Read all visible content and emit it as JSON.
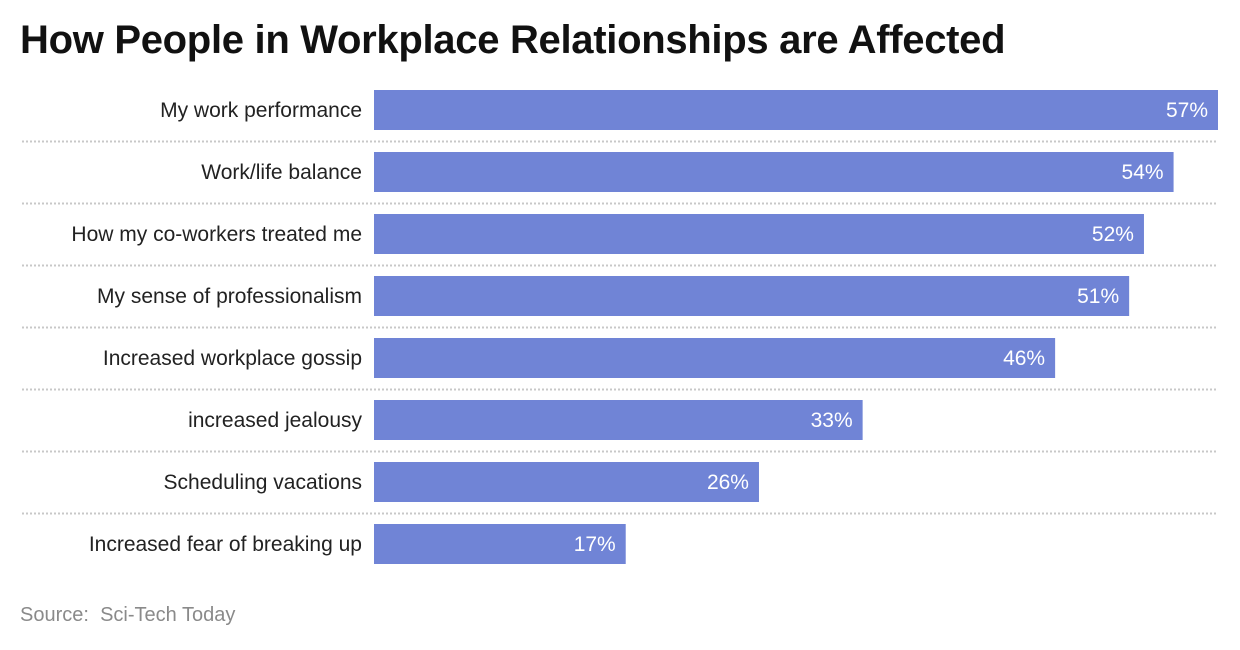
{
  "chart_data": {
    "type": "bar",
    "orientation": "horizontal",
    "title": "How People in Workplace Relationships are Affected",
    "categories": [
      "My work performance",
      "Work/life balance",
      "How my co-workers treated me",
      "My sense of professionalism",
      "Increased workplace gossip",
      "increased jealousy",
      "Scheduling vacations",
      "Increased fear of breaking up"
    ],
    "values": [
      57,
      54,
      52,
      51,
      46,
      33,
      26,
      17
    ],
    "value_labels": [
      "57%",
      "54%",
      "52%",
      "51%",
      "46%",
      "33%",
      "26%",
      "17%"
    ],
    "unit": "%",
    "xlim": [
      0,
      57
    ],
    "xlabel": "",
    "ylabel": "",
    "grid": false,
    "bar_color": "#7084D6",
    "source_label": "Source:",
    "source_name": "Sci-Tech Today"
  }
}
